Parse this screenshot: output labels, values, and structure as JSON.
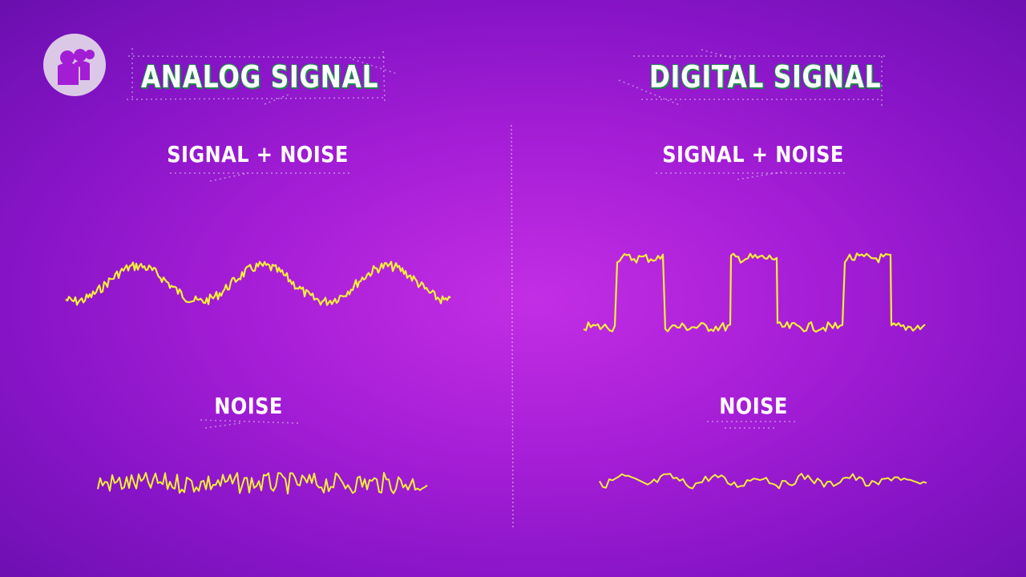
{
  "logo": {
    "icon": "pbs-logo-icon"
  },
  "analog": {
    "title": "ANALOG SIGNAL",
    "signal_noise_label": "SIGNAL + NOISE",
    "noise_label": "NOISE"
  },
  "digital": {
    "title": "DIGITAL SIGNAL",
    "signal_noise_label": "SIGNAL + NOISE",
    "noise_label": "NOISE"
  },
  "colors": {
    "background": "#a81fd8",
    "waveform": "#f5ee3a",
    "title_outline": "#1e8c4a",
    "text": "#ffffff"
  }
}
